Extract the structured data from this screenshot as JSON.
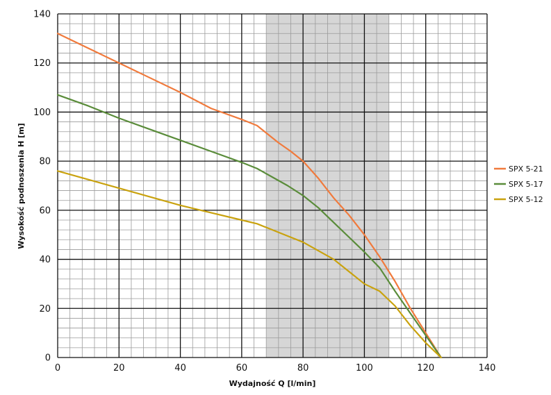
{
  "chart_data": {
    "type": "line",
    "title": "",
    "xlabel": "Wydajność Q [l/min]",
    "ylabel": "Wysokość podnoszenia H [m]",
    "xlim": [
      0,
      140
    ],
    "ylim": [
      0,
      140
    ],
    "x_major_step": 20,
    "y_major_step": 20,
    "x_minor_step": 4,
    "y_minor_step": 4,
    "grid": true,
    "legend_position": "right",
    "highlight_band": {
      "x_from": 68,
      "x_to": 108,
      "color": "#d6d6d6"
    },
    "x_ticks": [
      "0",
      "20",
      "40",
      "60",
      "80",
      "100",
      "120",
      "140"
    ],
    "y_ticks": [
      "0",
      "20",
      "40",
      "60",
      "80",
      "100",
      "120",
      "140"
    ],
    "series": [
      {
        "name": "SPX 5-21",
        "color": "#f07a3c",
        "points": [
          [
            0,
            132
          ],
          [
            10,
            126
          ],
          [
            20,
            120
          ],
          [
            30,
            114
          ],
          [
            40,
            108
          ],
          [
            50,
            101.5
          ],
          [
            60,
            97
          ],
          [
            65,
            94.5
          ],
          [
            68,
            91.5
          ],
          [
            72,
            87.5
          ],
          [
            76,
            84
          ],
          [
            80,
            80
          ],
          [
            85,
            73
          ],
          [
            90,
            65
          ],
          [
            95,
            58
          ],
          [
            100,
            50
          ],
          [
            105,
            41
          ],
          [
            110,
            31
          ],
          [
            115,
            20
          ],
          [
            120,
            10
          ],
          [
            125,
            0
          ]
        ]
      },
      {
        "name": "SPX 5-17",
        "color": "#5a8c3a",
        "points": [
          [
            0,
            107
          ],
          [
            10,
            102.5
          ],
          [
            20,
            97.5
          ],
          [
            30,
            93
          ],
          [
            40,
            88.5
          ],
          [
            50,
            84
          ],
          [
            60,
            79.5
          ],
          [
            65,
            77
          ],
          [
            70,
            73.5
          ],
          [
            75,
            70
          ],
          [
            80,
            66
          ],
          [
            85,
            61
          ],
          [
            90,
            55
          ],
          [
            95,
            49
          ],
          [
            100,
            43
          ],
          [
            105,
            36.5
          ],
          [
            110,
            27
          ],
          [
            115,
            18
          ],
          [
            120,
            9
          ],
          [
            125,
            0
          ]
        ]
      },
      {
        "name": "SPX 5-12",
        "color": "#c9a20e",
        "points": [
          [
            0,
            76
          ],
          [
            10,
            72.5
          ],
          [
            20,
            69
          ],
          [
            30,
            65.5
          ],
          [
            40,
            62
          ],
          [
            50,
            59
          ],
          [
            60,
            56
          ],
          [
            65,
            54.5
          ],
          [
            70,
            52
          ],
          [
            75,
            49.5
          ],
          [
            80,
            47
          ],
          [
            85,
            43.5
          ],
          [
            90,
            40
          ],
          [
            95,
            35
          ],
          [
            100,
            30
          ],
          [
            105,
            27
          ],
          [
            110,
            21
          ],
          [
            115,
            13
          ],
          [
            120,
            6
          ],
          [
            125,
            0
          ]
        ]
      }
    ]
  }
}
